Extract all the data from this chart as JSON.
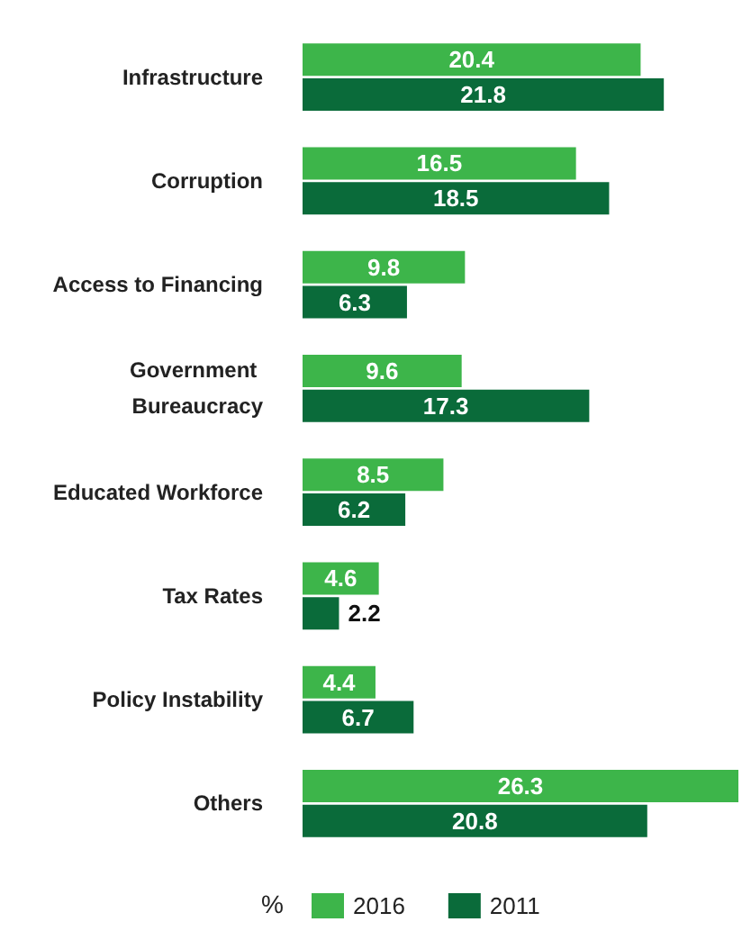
{
  "chart_data": {
    "type": "bar",
    "orientation": "horizontal",
    "categories": [
      "Infrastructure",
      "Corruption",
      "Access to Financing",
      "Government Bureaucracy",
      "Educated Workforce",
      "Tax Rates",
      "Policy Instability",
      "Others"
    ],
    "series": [
      {
        "name": "2016",
        "color": "#3db54a",
        "values": [
          20.4,
          16.5,
          9.8,
          9.6,
          8.5,
          4.6,
          4.4,
          26.3
        ]
      },
      {
        "name": "2011",
        "color": "#0a6b3a",
        "values": [
          21.8,
          18.5,
          6.3,
          17.3,
          6.2,
          2.2,
          6.7,
          20.8
        ]
      }
    ],
    "data_labels": true,
    "legend": "bottom",
    "legend_title": "%"
  }
}
